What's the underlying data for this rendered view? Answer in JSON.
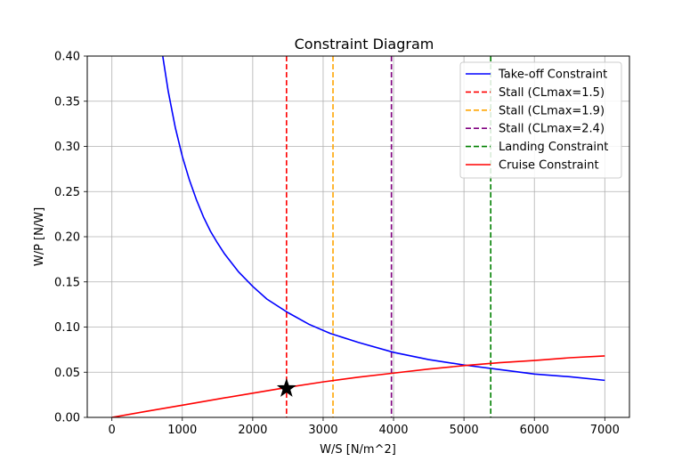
{
  "chart_data": {
    "type": "line",
    "title": "Constraint Diagram",
    "xlabel": "W/S [N/m^2]",
    "ylabel": "W/P [N/W]",
    "xlim": [
      -350,
      7350
    ],
    "ylim": [
      0,
      0.4
    ],
    "xticks": [
      0,
      1000,
      2000,
      3000,
      4000,
      5000,
      6000,
      7000
    ],
    "xtick_labels": [
      "0",
      "1000",
      "2000",
      "3000",
      "4000",
      "5000",
      "6000",
      "7000"
    ],
    "yticks": [
      0.0,
      0.05,
      0.1,
      0.15,
      0.2,
      0.25,
      0.3,
      0.35,
      0.4
    ],
    "ytick_labels": [
      "0.00",
      "0.05",
      "0.10",
      "0.15",
      "0.20",
      "0.25",
      "0.30",
      "0.35",
      "0.40"
    ],
    "grid": true,
    "legend_position": "top-right",
    "series": [
      {
        "name": "Take-off Constraint",
        "kind": "curve",
        "color": "#0000ff",
        "dashed": false,
        "x": [
          720,
          800,
          900,
          1000,
          1100,
          1200,
          1300,
          1400,
          1500,
          1600,
          1800,
          2000,
          2200,
          2500,
          2800,
          3100,
          3500,
          4000,
          4500,
          5000,
          5500,
          6000,
          6500,
          7000
        ],
        "y": [
          0.401,
          0.361,
          0.321,
          0.289,
          0.263,
          0.241,
          0.222,
          0.206,
          0.193,
          0.181,
          0.161,
          0.145,
          0.131,
          0.116,
          0.103,
          0.093,
          0.083,
          0.072,
          0.064,
          0.058,
          0.053,
          0.048,
          0.045,
          0.041
        ]
      },
      {
        "name": "Stall (CLmax=1.5)",
        "kind": "vline",
        "color": "#ff0000",
        "dashed": true,
        "x_value": 2480
      },
      {
        "name": "Stall (CLmax=1.9)",
        "kind": "vline",
        "color": "#ffa500",
        "dashed": true,
        "x_value": 3140
      },
      {
        "name": "Stall (CLmax=2.4)",
        "kind": "vline",
        "color": "#800080",
        "dashed": true,
        "x_value": 3970
      },
      {
        "name": "Landing Constraint",
        "kind": "vline",
        "color": "#008000",
        "dashed": true,
        "x_value": 5380
      },
      {
        "name": "Cruise Constraint",
        "kind": "curve",
        "color": "#ff0000",
        "dashed": false,
        "x": [
          0,
          500,
          1000,
          1500,
          2000,
          2500,
          3000,
          3500,
          4000,
          4500,
          5000,
          5500,
          6000,
          6500,
          7000
        ],
        "y": [
          0.0,
          0.0068,
          0.0135,
          0.0203,
          0.0268,
          0.0333,
          0.0393,
          0.0445,
          0.049,
          0.0535,
          0.0573,
          0.0605,
          0.063,
          0.066,
          0.068
        ]
      }
    ],
    "marker": {
      "shape": "star",
      "color": "#000000",
      "x": 2480,
      "y": 0.032
    }
  }
}
